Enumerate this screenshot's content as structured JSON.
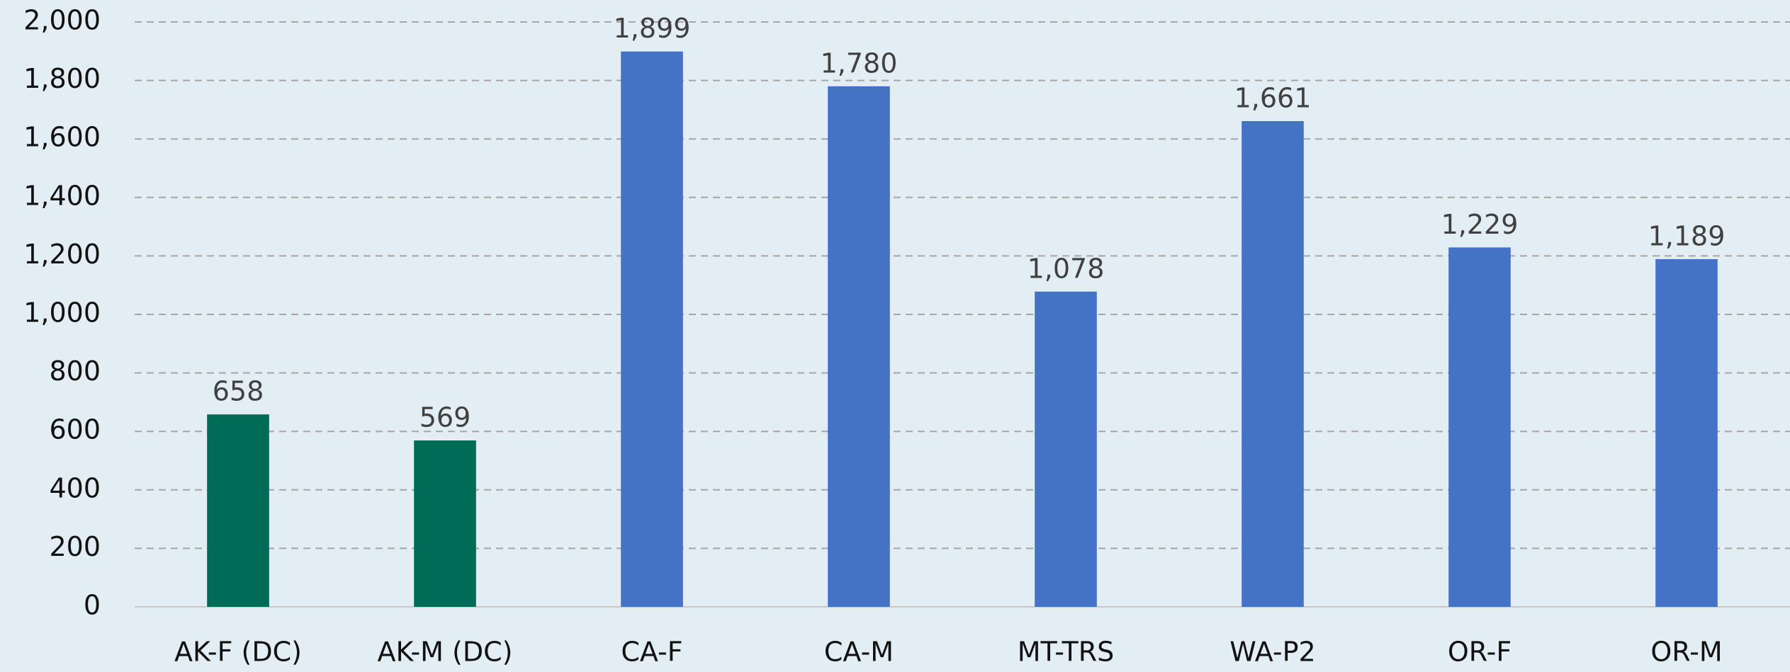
{
  "chart_data": {
    "type": "bar",
    "categories": [
      "AK-F (DC)",
      "AK-M (DC)",
      "CA-F",
      "CA-M",
      "MT-TRS",
      "WA-P2",
      "OR-F",
      "OR-M"
    ],
    "values": [
      658,
      569,
      1899,
      1780,
      1078,
      1661,
      1229,
      1189
    ],
    "value_labels": [
      "658",
      "569",
      "1,899",
      "1,780",
      "1,078",
      "1,661",
      "1,229",
      "1,189"
    ],
    "colors": [
      "#006b57",
      "#006b57",
      "#4472c4",
      "#4472c4",
      "#4472c4",
      "#4472c4",
      "#4472c4",
      "#4472c4"
    ],
    "ylim": [
      0,
      2000
    ],
    "yticks": [
      0,
      200,
      400,
      600,
      800,
      {
        "value": 1000,
        "label": "1,000"
      },
      {
        "value": 1200,
        "label": "1,200"
      },
      {
        "value": 1400,
        "label": "1,400"
      },
      {
        "value": 1600,
        "label": "1,600"
      },
      {
        "value": 1800,
        "label": "1,800"
      },
      {
        "value": 2000,
        "label": "2,000"
      }
    ],
    "grid": true
  }
}
